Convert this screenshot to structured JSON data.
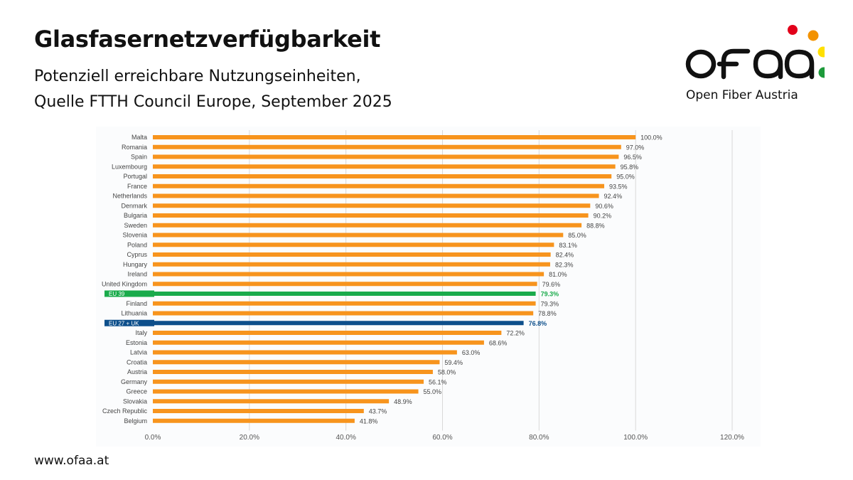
{
  "header": {
    "title": "Glasfasernetzverfügbarkeit",
    "subtitle_line1": "Potenziell erreichbare Nutzungseinheiten,",
    "subtitle_line2": "Quelle FTTH Council Europe, September 2025"
  },
  "footer": {
    "url": "www.ofaa.at"
  },
  "logo": {
    "wordmark": "ofaa",
    "caption": "Open Fiber Austria",
    "dot_colors": [
      "#e2001a",
      "#f39200",
      "#ffe000",
      "#1d9a3a"
    ]
  },
  "colors": {
    "bar": "#f7941d",
    "eu39": "#1aab4b",
    "eu27uk": "#0d4f8b",
    "grid": "#d9d9d9",
    "label": "#444444"
  },
  "chart_data": {
    "type": "bar",
    "orientation": "horizontal",
    "categories": [
      "Malta",
      "Romania",
      "Spain",
      "Luxembourg",
      "Portugal",
      "France",
      "Netherlands",
      "Denmark",
      "Bulgaria",
      "Sweden",
      "Slovenia",
      "Poland",
      "Cyprus",
      "Hungary",
      "Ireland",
      "United Kingdom",
      "EU 39",
      "Finland",
      "Lithuania",
      "EU 27 + UK",
      "Italy",
      "Estonia",
      "Latvia",
      "Croatia",
      "Austria",
      "Germany",
      "Greece",
      "Slovakia",
      "Czech Republic",
      "Belgium"
    ],
    "values": [
      100.0,
      97.0,
      96.5,
      95.8,
      95.0,
      93.5,
      92.4,
      90.6,
      90.2,
      88.8,
      85.0,
      83.1,
      82.4,
      82.3,
      81.0,
      79.6,
      79.3,
      79.3,
      78.8,
      76.8,
      72.2,
      68.6,
      63.0,
      59.4,
      58.0,
      56.1,
      55.0,
      48.9,
      43.7,
      41.8
    ],
    "value_labels": [
      "100.0%",
      "97.0%",
      "96.5%",
      "95.8%",
      "95.0%",
      "93.5%",
      "92.4%",
      "90.6%",
      "90.2%",
      "88.8%",
      "85.0%",
      "83.1%",
      "82.4%",
      "82.3%",
      "81.0%",
      "79.6%",
      "79.3%",
      "79.3%",
      "78.8%",
      "76.8%",
      "72.2%",
      "68.6%",
      "63.0%",
      "59.4%",
      "58.0%",
      "56.1%",
      "55.0%",
      "48.9%",
      "43.7%",
      "41.8%"
    ],
    "highlight": {
      "EU 39": "#1aab4b",
      "EU 27 + UK": "#0d4f8b"
    },
    "xlim": [
      0,
      120
    ],
    "x_ticks": [
      0,
      20,
      40,
      60,
      80,
      100,
      120
    ],
    "x_tick_labels": [
      "0.0%",
      "20.0%",
      "40.0%",
      "60.0%",
      "80.0%",
      "100.0%",
      "120.0%"
    ],
    "grid": true,
    "title": "",
    "xlabel": "",
    "ylabel": ""
  }
}
